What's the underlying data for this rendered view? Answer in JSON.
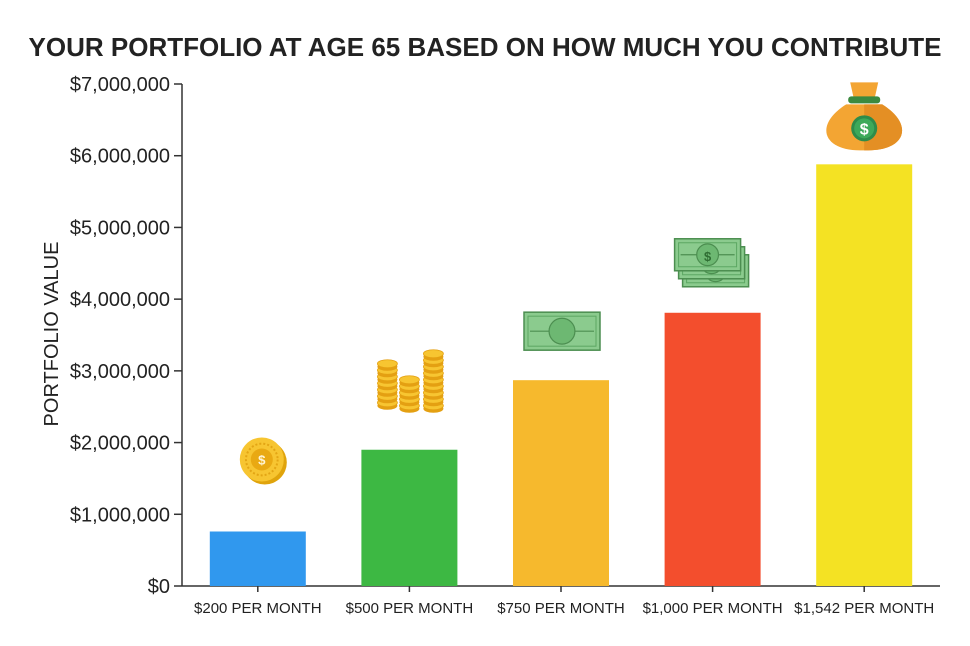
{
  "chart_data": {
    "type": "bar",
    "title": "YOUR PORTFOLIO AT AGE 65 BASED ON HOW MUCH YOU CONTRIBUTE",
    "xlabel": "",
    "ylabel": "PORTFOLIO VALUE",
    "ylim": [
      0,
      7000000
    ],
    "yticks": [
      0,
      1000000,
      2000000,
      3000000,
      4000000,
      5000000,
      6000000,
      7000000
    ],
    "ytick_labels": [
      "$0",
      "$1,000,000",
      "$2,000,000",
      "$3,000,000",
      "$4,000,000",
      "$5,000,000",
      "$6,000,000",
      "$7,000,000"
    ],
    "categories": [
      "$200 PER MONTH",
      "$500 PER MONTH",
      "$750 PER MONTH",
      "$1,000 PER MONTH",
      "$1,542 PER MONTH"
    ],
    "values": [
      760000,
      1900000,
      2870000,
      3810000,
      5880000
    ],
    "colors": [
      "#3098EE",
      "#3DB843",
      "#F6B92D",
      "#F34E2D",
      "#F4E223"
    ],
    "icons": [
      "coin-icon",
      "coin-stacks-icon",
      "dollar-bill-icon",
      "dollar-bills-stack-icon",
      "money-bag-icon"
    ],
    "grid": false
  }
}
